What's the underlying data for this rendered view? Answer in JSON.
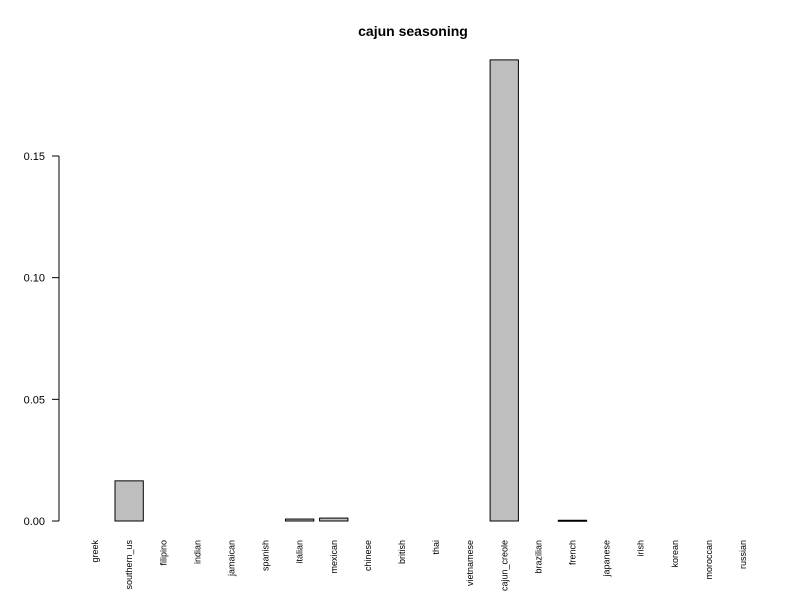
{
  "chart_data": {
    "type": "bar",
    "title": "cajun seasoning",
    "xlabel": "",
    "ylabel": "",
    "categories": [
      "greek",
      "southern_us",
      "filipino",
      "indian",
      "jamaican",
      "spanish",
      "italian",
      "mexican",
      "chinese",
      "british",
      "thai",
      "vietnamese",
      "cajun_creole",
      "brazilian",
      "french",
      "japanese",
      "irish",
      "korean",
      "moroccan",
      "russian"
    ],
    "values": [
      0,
      0.0165,
      0,
      0,
      0,
      0,
      0.0008,
      0.0012,
      0,
      0,
      0,
      0,
      0.1895,
      0,
      0.0003,
      0,
      0,
      0,
      0,
      0
    ],
    "ylim": [
      0,
      0.19
    ],
    "yticks": [
      0.0,
      0.05,
      0.1,
      0.15
    ],
    "ytick_labels": [
      "0.00",
      "0.05",
      "0.10",
      "0.15"
    ],
    "grid": false,
    "legend": "none",
    "bar_color": "#bebebe",
    "border_color": "#000000"
  }
}
